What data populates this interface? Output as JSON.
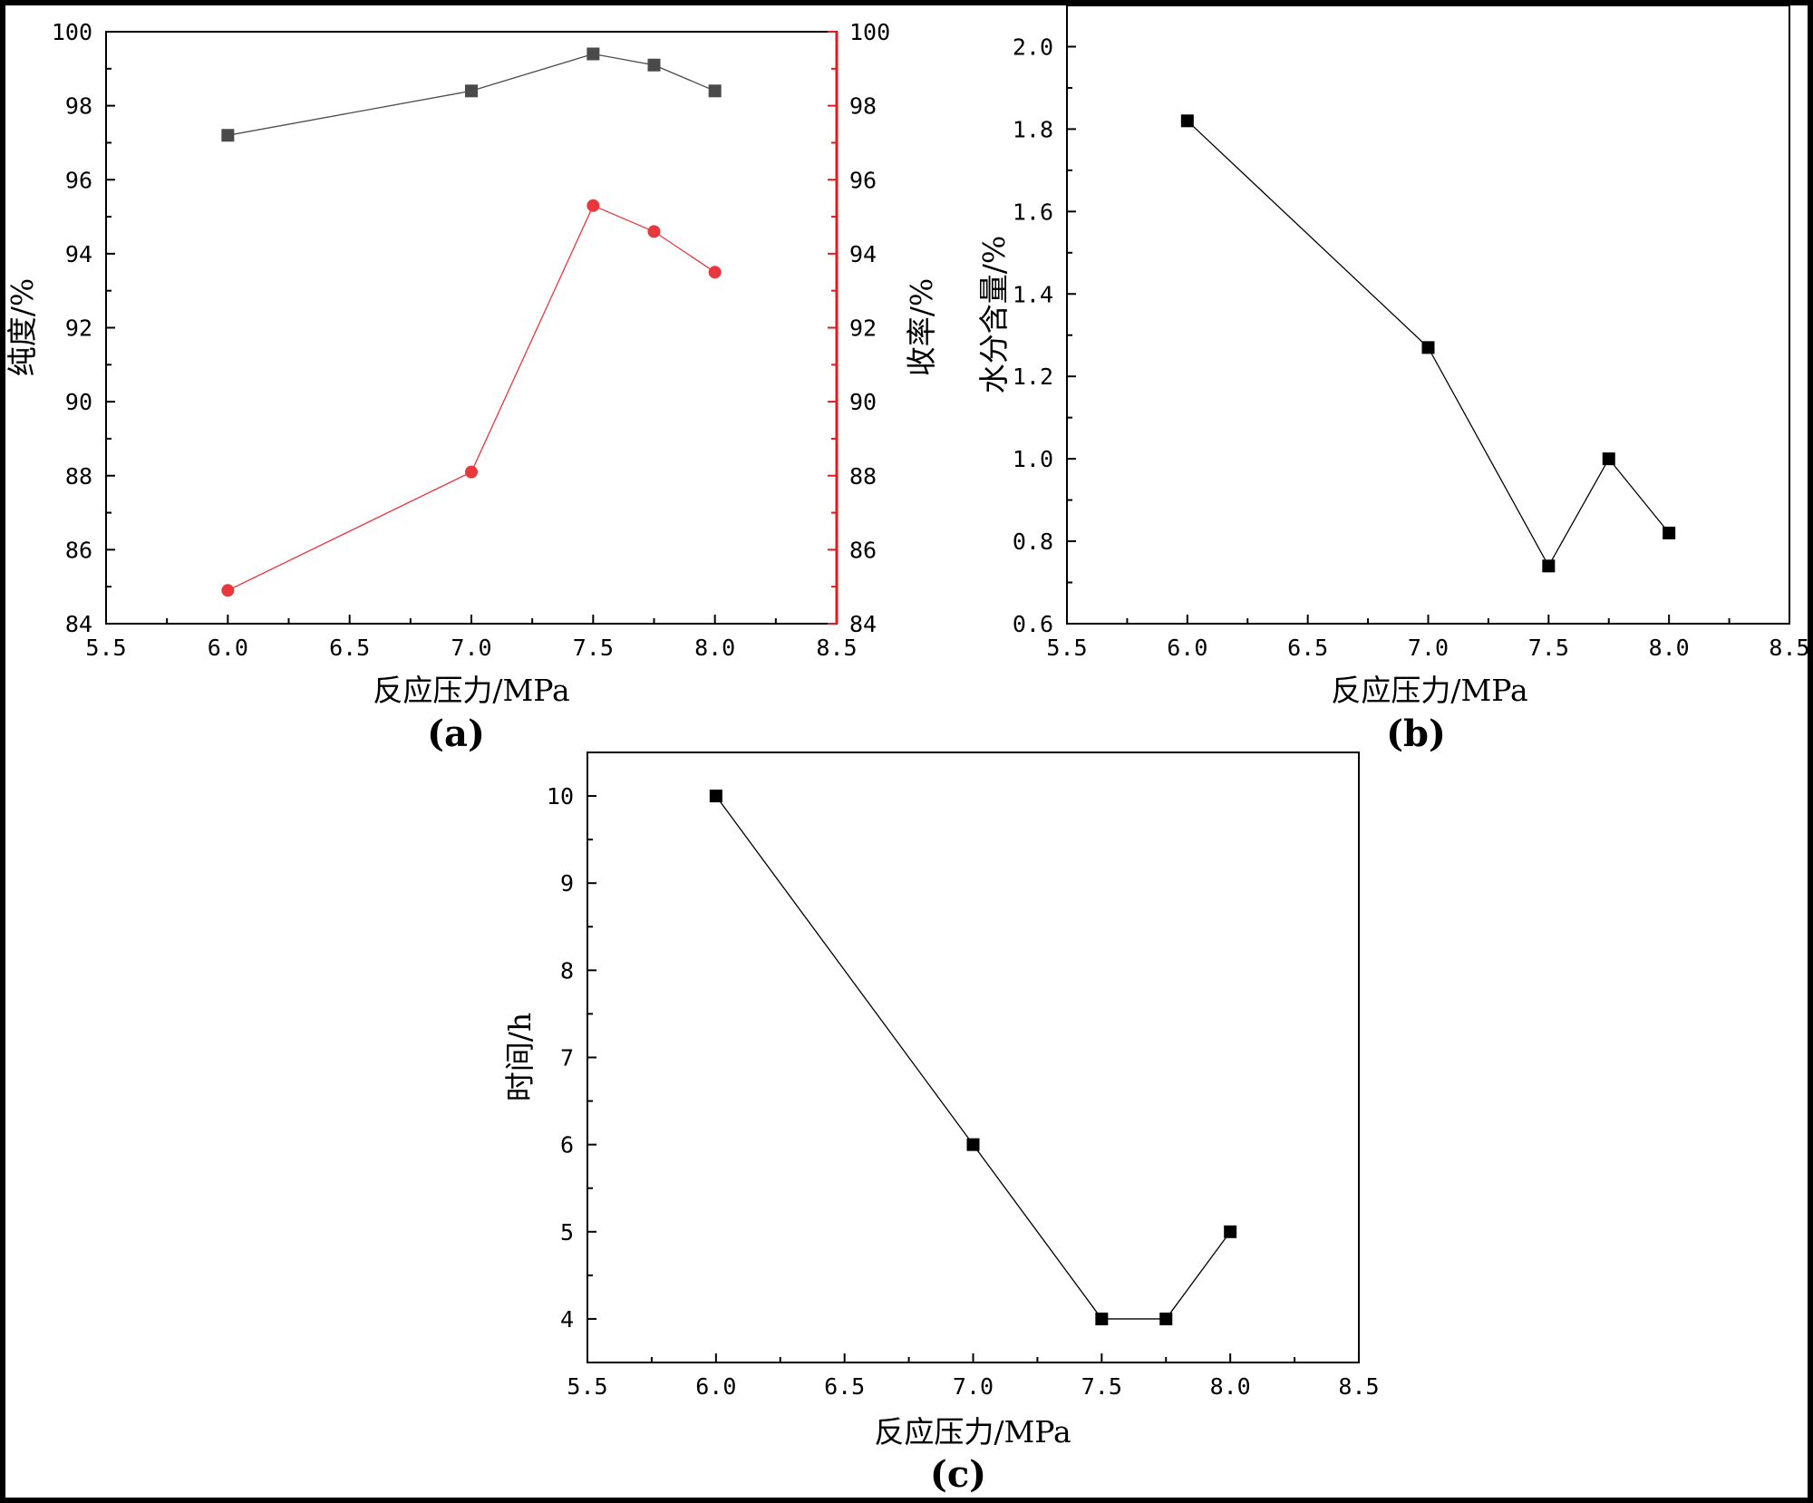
{
  "chart_data": [
    {
      "type": "line",
      "panel_label": "(a)",
      "xlabel": "反应压力/MPa",
      "xlim": [
        5.5,
        8.5
      ],
      "xticks": [
        "5.5",
        "6.0",
        "6.5",
        "7.0",
        "7.5",
        "8.0",
        "8.5"
      ],
      "ylabel": "纯度/%",
      "ylim": [
        84,
        100
      ],
      "yticks": [
        "84",
        "86",
        "88",
        "90",
        "92",
        "94",
        "96",
        "98",
        "100"
      ],
      "ylabel_right": "收率/%",
      "ylim_right": [
        84,
        100
      ],
      "yticks_right": [
        "84",
        "86",
        "88",
        "90",
        "92",
        "94",
        "96",
        "98",
        "100"
      ],
      "right_axis_color": "#e8191e",
      "grid": false,
      "x": [
        6.0,
        7.0,
        7.5,
        7.75,
        8.0
      ],
      "series": [
        {
          "axis": "left",
          "marker": "square",
          "color": "#4a4a4a",
          "values": [
            97.2,
            98.4,
            99.4,
            99.1,
            98.4
          ]
        },
        {
          "axis": "right",
          "marker": "circle",
          "color": "#e8373d",
          "values": [
            84.9,
            88.1,
            95.3,
            94.6,
            93.5
          ]
        }
      ]
    },
    {
      "type": "line",
      "panel_label": "(b)",
      "xlabel": "反应压力/MPa",
      "xlim": [
        5.5,
        8.5
      ],
      "xticks": [
        "5.5",
        "6.0",
        "6.5",
        "7.0",
        "7.5",
        "8.0",
        "8.5"
      ],
      "ylabel": "水分含量/%",
      "ylim": [
        0.6,
        2.1
      ],
      "yticks": [
        "0.6",
        "0.8",
        "1.0",
        "1.2",
        "1.4",
        "1.6",
        "1.8",
        "2.0"
      ],
      "grid": false,
      "x": [
        6.0,
        7.0,
        7.5,
        7.75,
        8.0
      ],
      "series": [
        {
          "axis": "left",
          "marker": "square",
          "color": "#000000",
          "values": [
            1.82,
            1.27,
            0.74,
            1.0,
            0.82
          ]
        }
      ]
    },
    {
      "type": "line",
      "panel_label": "(c)",
      "xlabel": "反应压力/MPa",
      "xlim": [
        5.5,
        8.5
      ],
      "xticks": [
        "5.5",
        "6.0",
        "6.5",
        "7.0",
        "7.5",
        "8.0",
        "8.5"
      ],
      "ylabel": "时间/h",
      "ylim": [
        3.5,
        10.5
      ],
      "yticks": [
        "4",
        "5",
        "6",
        "7",
        "8",
        "9",
        "10"
      ],
      "grid": false,
      "x": [
        6.0,
        7.0,
        7.5,
        7.75,
        8.0
      ],
      "series": [
        {
          "axis": "left",
          "marker": "square",
          "color": "#000000",
          "values": [
            10,
            6,
            4,
            4,
            5
          ]
        }
      ]
    }
  ]
}
